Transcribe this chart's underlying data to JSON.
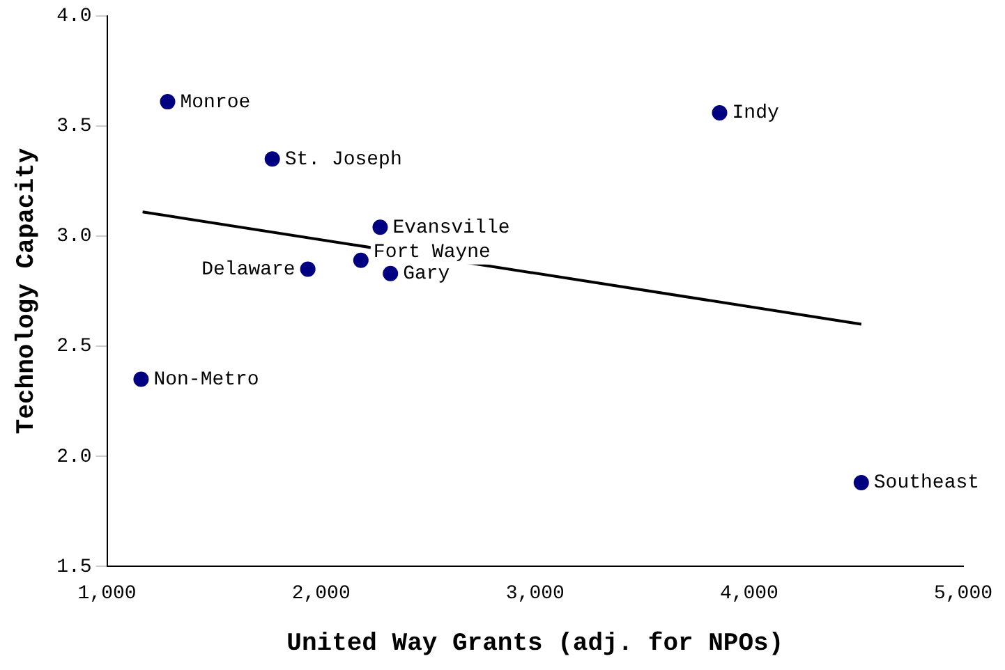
{
  "chart_data": {
    "type": "scatter",
    "xlabel": "United Way Grants (adj. for NPOs)",
    "ylabel": "Technology Capacity",
    "xlim": [
      1000,
      5000
    ],
    "xticks": [
      {
        "value": 1000,
        "label": "1,000"
      },
      {
        "value": 2000,
        "label": "2,000"
      },
      {
        "value": 3000,
        "label": "3,000"
      },
      {
        "value": 4000,
        "label": "4,000"
      },
      {
        "value": 5000,
        "label": "5,000"
      }
    ],
    "ylim": [
      1.5,
      4.0
    ],
    "yticks": [
      {
        "value": 1.5,
        "label": "1.5"
      },
      {
        "value": 2.0,
        "label": "2.0"
      },
      {
        "value": 2.5,
        "label": "2.5"
      },
      {
        "value": 3.0,
        "label": "3.0"
      },
      {
        "value": 3.5,
        "label": "3.5"
      },
      {
        "value": 4.0,
        "label": "4.0"
      }
    ],
    "grid": false,
    "legend": false,
    "marker": "circle",
    "series": [
      {
        "type": "scatter",
        "color": "#000080",
        "x": [
          1283,
          1772,
          3862,
          2276,
          2186,
          1938,
          2324,
          1159,
          4524
        ],
        "values": [
          3.61,
          3.35,
          3.56,
          3.04,
          2.89,
          2.85,
          2.83,
          2.35,
          1.88
        ]
      },
      {
        "type": "line",
        "color": "#000000",
        "x": [
          1166,
          4524
        ],
        "values": [
          3.11,
          2.6
        ],
        "marker": "none",
        "line_style": "solid"
      }
    ],
    "annotations": [
      {
        "text": "Monroe",
        "x": 1283,
        "y": 3.61
      },
      {
        "text": "St. Joseph",
        "x": 1772,
        "y": 3.35
      },
      {
        "text": "Indy",
        "x": 3862,
        "y": 3.56
      },
      {
        "text": "Evansville",
        "x": 2276,
        "y": 3.04
      },
      {
        "text": "Fort Wayne",
        "x": 2186,
        "y": 2.89
      },
      {
        "text": "Delaware",
        "x": 1938,
        "y": 2.85
      },
      {
        "text": "Gary",
        "x": 2324,
        "y": 2.83
      },
      {
        "text": "Non-Metro",
        "x": 1159,
        "y": 2.35
      },
      {
        "text": "Southeast",
        "x": 4524,
        "y": 1.88
      }
    ]
  }
}
